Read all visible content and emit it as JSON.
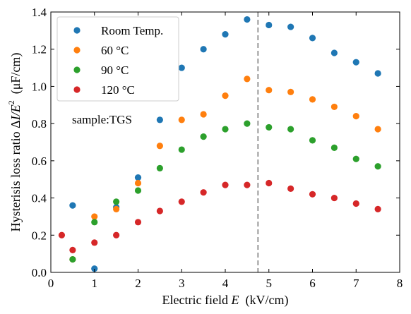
{
  "chart_data": {
    "type": "scatter",
    "xlabel": "Electric field E (kV/cm)",
    "ylabel": "Hysterisis loss ratio ΔI/E² (μF/cm)",
    "xlabel_parts": {
      "prefix": "Electric field ",
      "var": "E",
      "suffix": "  (kV/cm)"
    },
    "ylabel_parts": {
      "prefix": "Hysterisis loss ratio Δ",
      "var": "I/E",
      "sup": "2",
      "suffix": "  (μF/cm)"
    },
    "xlim": [
      0,
      8
    ],
    "ylim": [
      0,
      1.4
    ],
    "xticks": [
      0,
      1,
      2,
      3,
      4,
      5,
      6,
      7,
      8
    ],
    "yticks": [
      0.0,
      0.2,
      0.4,
      0.6,
      0.8,
      1.0,
      1.2,
      1.4
    ],
    "ytick_labels": [
      "0.0",
      "0.2",
      "0.4",
      "0.6",
      "0.8",
      "1.0",
      "1.2",
      "1.4"
    ],
    "grid": false,
    "legend_position": "top-left",
    "annotation": "sample:TGS",
    "vline": {
      "x": 4.75,
      "style": "dashed",
      "color": "#808080"
    },
    "series": [
      {
        "name": "Room Temp.",
        "color": "#1f77b4",
        "x": [
          0.5,
          1.0,
          1.5,
          2.0,
          2.5,
          3.0,
          3.5,
          4.0,
          4.5,
          5.0,
          5.5,
          6.0,
          6.5,
          7.0,
          7.5
        ],
        "y": [
          0.36,
          0.02,
          0.35,
          0.51,
          0.82,
          1.1,
          1.2,
          1.28,
          1.36,
          1.33,
          1.32,
          1.26,
          1.18,
          1.13,
          1.07
        ]
      },
      {
        "name": "60  °C",
        "color": "#ff7f0e",
        "x": [
          0.5,
          1.0,
          1.5,
          2.0,
          2.5,
          3.0,
          3.5,
          4.0,
          4.5,
          5.0,
          5.5,
          6.0,
          6.5,
          7.0,
          7.5
        ],
        "y": [
          0.07,
          0.3,
          0.34,
          0.48,
          0.68,
          0.82,
          0.85,
          0.95,
          1.04,
          0.98,
          0.97,
          0.93,
          0.89,
          0.84,
          0.77
        ]
      },
      {
        "name": "90  °C",
        "color": "#2ca02c",
        "x": [
          0.5,
          1.0,
          1.5,
          2.0,
          2.5,
          3.0,
          3.5,
          4.0,
          4.5,
          5.0,
          5.5,
          6.0,
          6.5,
          7.0,
          7.5
        ],
        "y": [
          0.07,
          0.27,
          0.38,
          0.44,
          0.56,
          0.66,
          0.73,
          0.77,
          0.8,
          0.78,
          0.77,
          0.71,
          0.67,
          0.61,
          0.57
        ]
      },
      {
        "name": "120 °C",
        "color": "#d62728",
        "x": [
          0.25,
          0.5,
          1.0,
          1.5,
          2.0,
          2.5,
          3.0,
          3.5,
          4.0,
          4.5,
          5.0,
          5.5,
          6.0,
          6.5,
          7.0,
          7.5
        ],
        "y": [
          0.2,
          0.12,
          0.16,
          0.2,
          0.27,
          0.33,
          0.38,
          0.43,
          0.47,
          0.47,
          0.48,
          0.45,
          0.42,
          0.4,
          0.37,
          0.34
        ]
      }
    ]
  }
}
